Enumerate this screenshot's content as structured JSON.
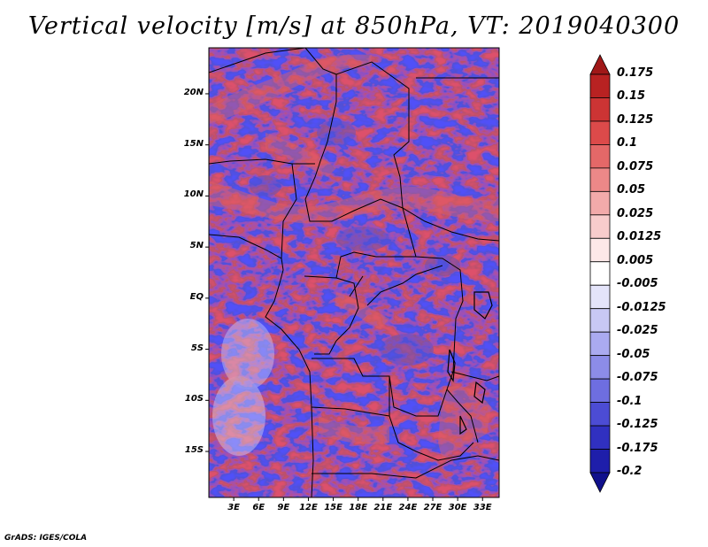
{
  "title": "Vertical velocity [m/s] at 850hPa, VT: 2019040300",
  "credit": "GrADS: IGES/COLA",
  "map": {
    "lat_labels": [
      "20N",
      "15N",
      "10N",
      "5N",
      "EQ",
      "5S",
      "10S",
      "15S"
    ],
    "lat_values": [
      20,
      15,
      10,
      5,
      0,
      -5,
      -10,
      -15
    ],
    "lon_labels": [
      "3E",
      "6E",
      "9E",
      "12E",
      "15E",
      "18E",
      "21E",
      "24E",
      "27E",
      "30E",
      "33E"
    ],
    "lon_values": [
      3,
      6,
      9,
      12,
      15,
      18,
      21,
      24,
      27,
      30,
      33
    ],
    "lat_range": [
      -19.5,
      24.5
    ],
    "lon_range": [
      0,
      35
    ],
    "field": "Vertical velocity",
    "level": "850hPa",
    "units": "m/s"
  },
  "colorbar": {
    "labels": [
      "0.175",
      "0.15",
      "0.125",
      "0.1",
      "0.075",
      "0.05",
      "0.025",
      "0.0125",
      "0.005",
      "-0.005",
      "-0.0125",
      "-0.025",
      "-0.05",
      "-0.075",
      "-0.1",
      "-0.125",
      "-0.175",
      "-0.2"
    ],
    "colors": [
      "#a01818",
      "#b82222",
      "#cc3434",
      "#dc4a4a",
      "#e46868",
      "#ec8888",
      "#f2aaaa",
      "#f8cccc",
      "#fde8e8",
      "#ffffff",
      "#e4e4fa",
      "#c8c8f4",
      "#aaaaf0",
      "#8c8ce8",
      "#6e6ee0",
      "#4c4cd4",
      "#3030c0",
      "#1e1eaa",
      "#10108c"
    ]
  }
}
